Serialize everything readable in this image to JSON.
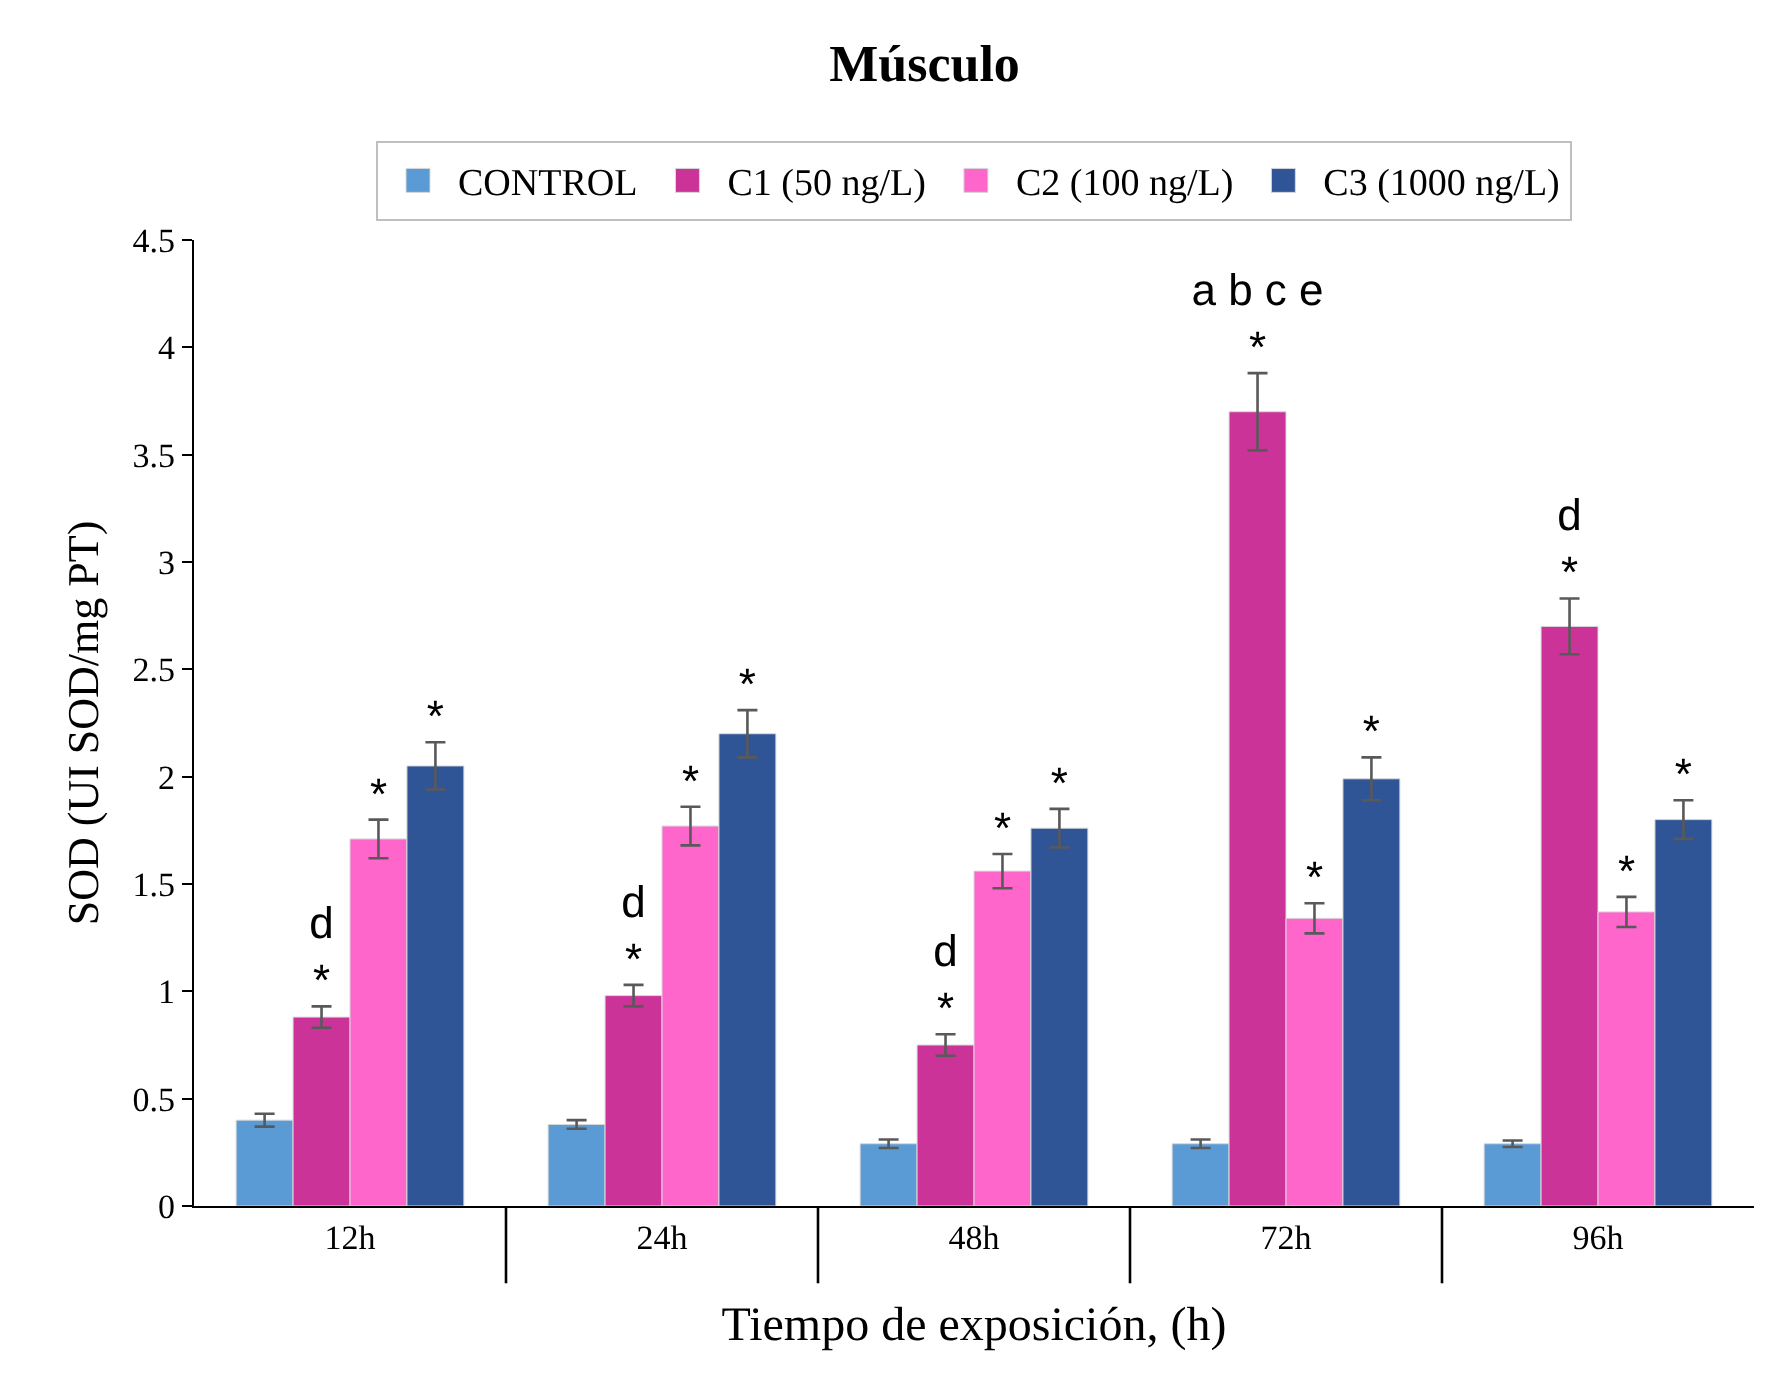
{
  "chart_data": {
    "type": "bar",
    "title": "Músculo",
    "xlabel": "Tiempo de exposición, (h)",
    "ylabel": "SOD (UI SOD/mg PT)",
    "categories": [
      "12h",
      "24h",
      "48h",
      "72h",
      "96h"
    ],
    "series": [
      {
        "name": "CONTROL",
        "color": "#5b9bd5",
        "values": [
          0.4,
          0.38,
          0.29,
          0.29,
          0.29
        ],
        "errors": [
          0.03,
          0.02,
          0.02,
          0.02,
          0.015
        ]
      },
      {
        "name": "C1 (50 ng/L)",
        "color": "#cc3399",
        "values": [
          0.88,
          0.98,
          0.75,
          3.7,
          2.7
        ],
        "errors": [
          0.05,
          0.05,
          0.05,
          0.18,
          0.13
        ],
        "value_labels": [
          "d\n*",
          "d\n*",
          "d\n*",
          "a b c e\n*",
          "d\n*"
        ]
      },
      {
        "name": "C2 (100 ng/L)",
        "color": "#ff66cc",
        "values": [
          1.71,
          1.77,
          1.56,
          1.34,
          1.37
        ],
        "errors": [
          0.09,
          0.09,
          0.08,
          0.07,
          0.07
        ],
        "value_labels": [
          "*",
          "*",
          "*",
          "*",
          "*"
        ]
      },
      {
        "name": "C3 (1000 ng/L)",
        "color": "#2f5597",
        "values": [
          2.05,
          2.2,
          1.76,
          1.99,
          1.8
        ],
        "errors": [
          0.11,
          0.11,
          0.09,
          0.1,
          0.09
        ],
        "value_labels": [
          "*",
          "*",
          "*",
          "*",
          "*"
        ]
      }
    ],
    "ylim": [
      0,
      4.5
    ],
    "yticks": [
      0,
      0.5,
      1,
      1.5,
      2,
      2.5,
      3,
      3.5,
      4,
      4.5
    ],
    "grid": false,
    "legend": "top"
  }
}
